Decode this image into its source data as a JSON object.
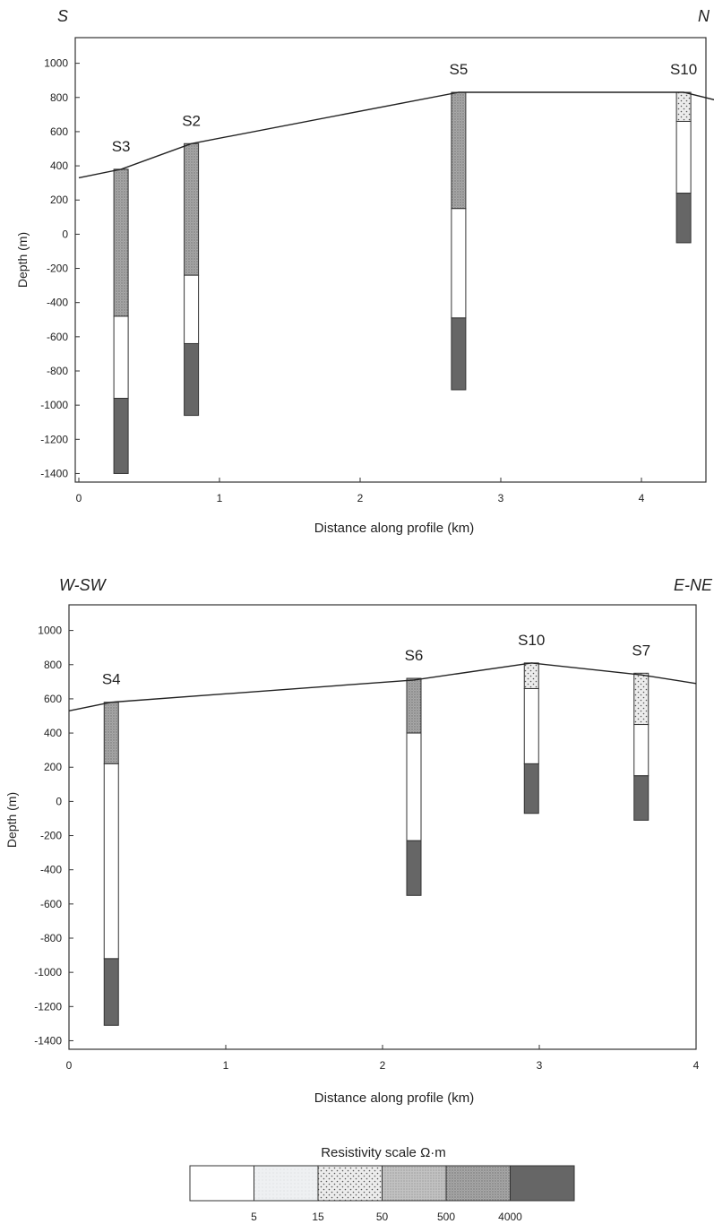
{
  "chart_data": [
    {
      "type": "resistivity-depth-profile",
      "direction_left": "S",
      "direction_right": "N",
      "xlabel": "Distance along profile (km)",
      "ylabel": "Depth (m)",
      "xlim": [
        0,
        4.5
      ],
      "ylim": [
        -1450,
        1150
      ],
      "x_ticks": [
        0,
        1,
        2,
        3,
        4
      ],
      "y_ticks": [
        1000,
        800,
        600,
        400,
        200,
        0,
        -200,
        -400,
        -600,
        -800,
        -1000,
        -1200,
        -1400
      ],
      "topography": [
        [
          0,
          330
        ],
        [
          0.3,
          380
        ],
        [
          0.8,
          530
        ],
        [
          2.7,
          830
        ],
        [
          4.3,
          830
        ],
        [
          4.55,
          780
        ]
      ],
      "soundings": [
        {
          "name": "S3",
          "x": 0.3,
          "layers": [
            {
              "top": 380,
              "bottom": -480,
              "scale_class": 4
            },
            {
              "top": -480,
              "bottom": -960,
              "scale_class": 0
            },
            {
              "top": -960,
              "bottom": -1400,
              "scale_class": 5
            }
          ]
        },
        {
          "name": "S2",
          "x": 0.8,
          "layers": [
            {
              "top": 530,
              "bottom": -240,
              "scale_class": 4
            },
            {
              "top": -240,
              "bottom": -640,
              "scale_class": 0
            },
            {
              "top": -640,
              "bottom": -1060,
              "scale_class": 5
            }
          ]
        },
        {
          "name": "S5",
          "x": 2.7,
          "layers": [
            {
              "top": 830,
              "bottom": 150,
              "scale_class": 4
            },
            {
              "top": 150,
              "bottom": -490,
              "scale_class": 0
            },
            {
              "top": -490,
              "bottom": -910,
              "scale_class": 5
            }
          ]
        },
        {
          "name": "S10",
          "x": 4.3,
          "layers": [
            {
              "top": 830,
              "bottom": 660,
              "scale_class": 2
            },
            {
              "top": 660,
              "bottom": 240,
              "scale_class": 0
            },
            {
              "top": 240,
              "bottom": -50,
              "scale_class": 5
            }
          ]
        }
      ]
    },
    {
      "type": "resistivity-depth-profile",
      "direction_left": "W-SW",
      "direction_right": "E-NE",
      "xlabel": "Distance along profile (km)",
      "ylabel": "Depth (m)",
      "xlim": [
        0,
        4
      ],
      "ylim": [
        -1450,
        1150
      ],
      "x_ticks": [
        0,
        1,
        2,
        3,
        4
      ],
      "y_ticks": [
        1000,
        800,
        600,
        400,
        200,
        0,
        -200,
        -400,
        -600,
        -800,
        -1000,
        -1200,
        -1400
      ],
      "topography": [
        [
          0,
          530
        ],
        [
          0.27,
          580
        ],
        [
          2.2,
          710
        ],
        [
          2.95,
          810
        ],
        [
          3.65,
          740
        ],
        [
          4,
          690
        ]
      ],
      "soundings": [
        {
          "name": "S4",
          "x": 0.27,
          "layers": [
            {
              "top": 580,
              "bottom": 220,
              "scale_class": 4
            },
            {
              "top": 220,
              "bottom": -920,
              "scale_class": 0
            },
            {
              "top": -920,
              "bottom": -1310,
              "scale_class": 5
            }
          ]
        },
        {
          "name": "S6",
          "x": 2.2,
          "layers": [
            {
              "top": 720,
              "bottom": 400,
              "scale_class": 4
            },
            {
              "top": 400,
              "bottom": -230,
              "scale_class": 0
            },
            {
              "top": -230,
              "bottom": -550,
              "scale_class": 5
            }
          ]
        },
        {
          "name": "S10",
          "x": 2.95,
          "layers": [
            {
              "top": 810,
              "bottom": 660,
              "scale_class": 2
            },
            {
              "top": 660,
              "bottom": 220,
              "scale_class": 0
            },
            {
              "top": 220,
              "bottom": -70,
              "scale_class": 5
            }
          ]
        },
        {
          "name": "S7",
          "x": 3.65,
          "layers": [
            {
              "top": 750,
              "bottom": 450,
              "scale_class": 2
            },
            {
              "top": 450,
              "bottom": 150,
              "scale_class": 0
            },
            {
              "top": 150,
              "bottom": -110,
              "scale_class": 5
            }
          ]
        }
      ]
    }
  ],
  "legend": {
    "title": "Resistivity scale Ω·m",
    "boundaries": [
      "5",
      "15",
      "50",
      "500",
      "4000"
    ],
    "classes": [
      {
        "color": "#ffffff",
        "pattern": "none"
      },
      {
        "color": "#eef0f2",
        "pattern": "fine-stipple"
      },
      {
        "color": "#e4e5e6",
        "pattern": "dots"
      },
      {
        "color": "#bdbdbd",
        "pattern": "stipple"
      },
      {
        "color": "#a6a6a6",
        "pattern": "dense-stipple"
      },
      {
        "color": "#666666",
        "pattern": "solid"
      }
    ]
  }
}
